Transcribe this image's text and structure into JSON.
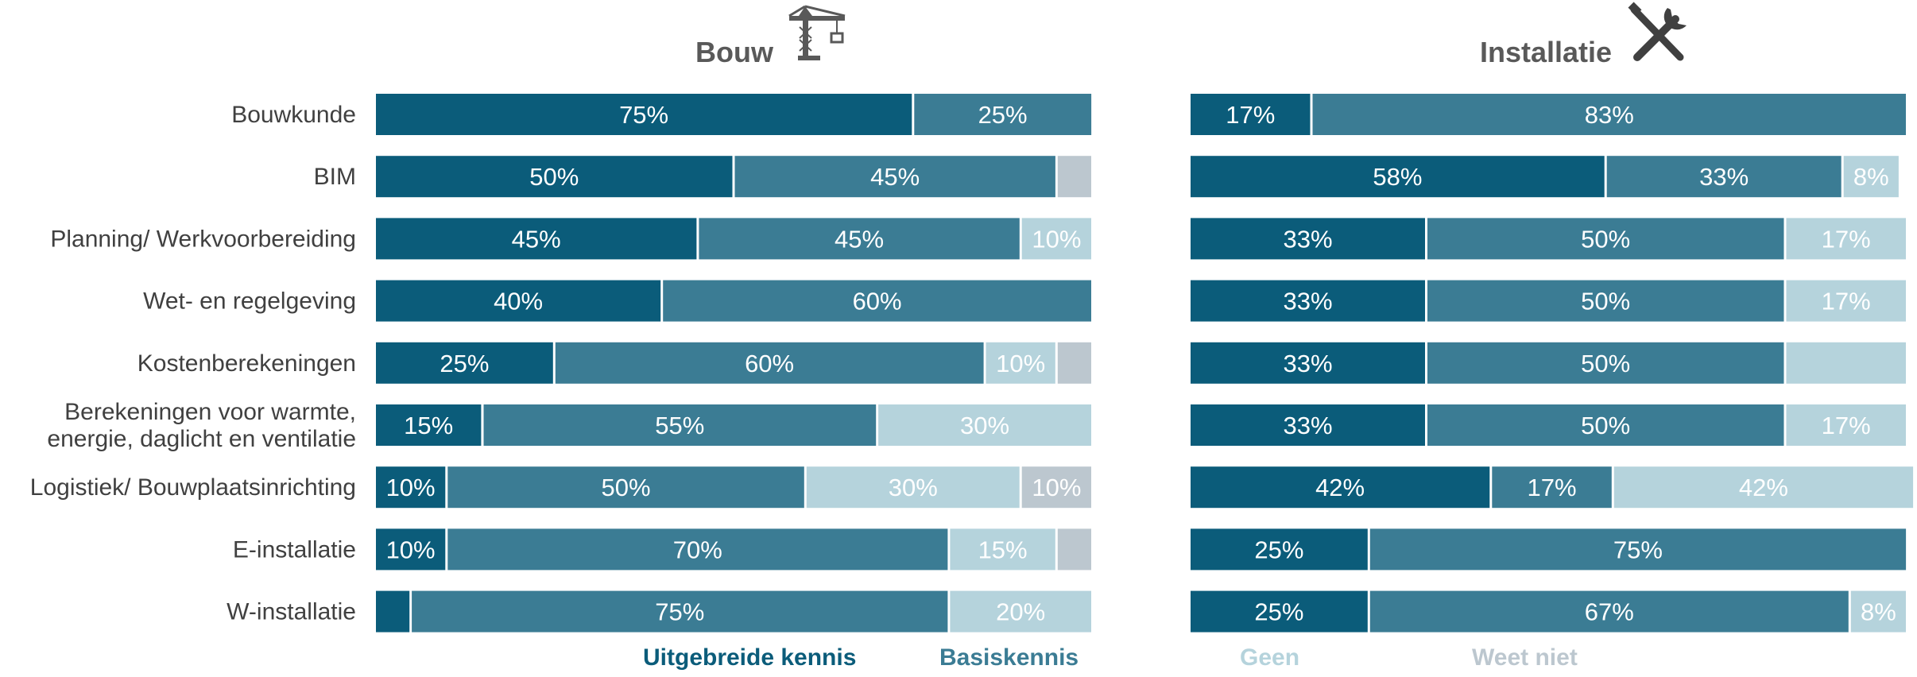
{
  "chart_data": {
    "type": "bar",
    "orientation": "horizontal",
    "stacked": true,
    "categories": [
      "Bouwkunde",
      "BIM",
      "Planning/ Werkvoorbereiding",
      "Wet- en regelgeving",
      "Kostenberekeningen",
      "Berekeningen voor warmte, energie, daglicht en ventilatie",
      "Logistiek/ Bouwplaatsinrichting",
      "E-installatie",
      "W-installatie"
    ],
    "category_lines": [
      [
        "Bouwkunde"
      ],
      [
        "BIM"
      ],
      [
        "Planning/ Werkvoorbereiding"
      ],
      [
        "Wet- en regelgeving"
      ],
      [
        "Kostenberekeningen"
      ],
      [
        "Berekeningen voor warmte,",
        "energie, daglicht en ventilatie"
      ],
      [
        "Logistiek/ Bouwplaatsinrichting"
      ],
      [
        "E-installatie"
      ],
      [
        "W-installatie"
      ]
    ],
    "legend": [
      {
        "name": "Uitgebreide kennis",
        "color": "#0b5c7a"
      },
      {
        "name": "Basiskennis",
        "color": "#3b7c94"
      },
      {
        "name": "Geen",
        "color": "#b5d3dc"
      },
      {
        "name": "Weet niet",
        "color": "#bcc7cf"
      }
    ],
    "legend_placement": "bottom",
    "panels": [
      {
        "title": "Bouw",
        "icon": "crane-icon",
        "series": [
          {
            "name": "Uitgebreide kennis",
            "values": [
              75,
              50,
              45,
              40,
              25,
              15,
              10,
              10,
              5
            ]
          },
          {
            "name": "Basiskennis",
            "values": [
              25,
              45,
              45,
              60,
              60,
              55,
              50,
              70,
              75
            ]
          },
          {
            "name": "Geen",
            "values": [
              0,
              0,
              10,
              0,
              10,
              30,
              30,
              15,
              20
            ]
          },
          {
            "name": "Weet niet",
            "values": [
              0,
              5,
              0,
              0,
              5,
              0,
              10,
              5,
              0
            ]
          }
        ],
        "labels": [
          [
            "75%",
            "25%",
            "",
            ""
          ],
          [
            "50%",
            "45%",
            "",
            ""
          ],
          [
            "45%",
            "45%",
            "10%",
            ""
          ],
          [
            "40%",
            "60%",
            "",
            ""
          ],
          [
            "25%",
            "60%",
            "10%",
            ""
          ],
          [
            "15%",
            "55%",
            "30%",
            ""
          ],
          [
            "10%",
            "50%",
            "30%",
            "10%"
          ],
          [
            "10%",
            "70%",
            "15%",
            ""
          ],
          [
            "",
            "75%",
            "20%",
            ""
          ]
        ]
      },
      {
        "title": "Installatie",
        "icon": "wrench-screwdriver-icon",
        "series": [
          {
            "name": "Uitgebreide kennis",
            "values": [
              17,
              58,
              33,
              33,
              33,
              33,
              42,
              25,
              25
            ]
          },
          {
            "name": "Basiskennis",
            "values": [
              83,
              33,
              50,
              50,
              50,
              50,
              17,
              75,
              67
            ]
          },
          {
            "name": "Geen",
            "values": [
              0,
              8,
              17,
              17,
              17,
              17,
              42,
              0,
              8
            ]
          },
          {
            "name": "Weet niet",
            "values": [
              0,
              0,
              0,
              0,
              0,
              0,
              0,
              0,
              0
            ]
          }
        ],
        "labels": [
          [
            "17%",
            "83%",
            "",
            ""
          ],
          [
            "58%",
            "33%",
            "8%",
            ""
          ],
          [
            "33%",
            "50%",
            "17%",
            ""
          ],
          [
            "33%",
            "50%",
            "17%",
            ""
          ],
          [
            "33%",
            "50%",
            "",
            ""
          ],
          [
            "33%",
            "50%",
            "17%",
            ""
          ],
          [
            "42%",
            "17%",
            "42%",
            ""
          ],
          [
            "25%",
            "75%",
            "",
            ""
          ],
          [
            "25%",
            "67%",
            "8%",
            ""
          ]
        ]
      }
    ],
    "xlim": [
      0,
      100
    ]
  }
}
